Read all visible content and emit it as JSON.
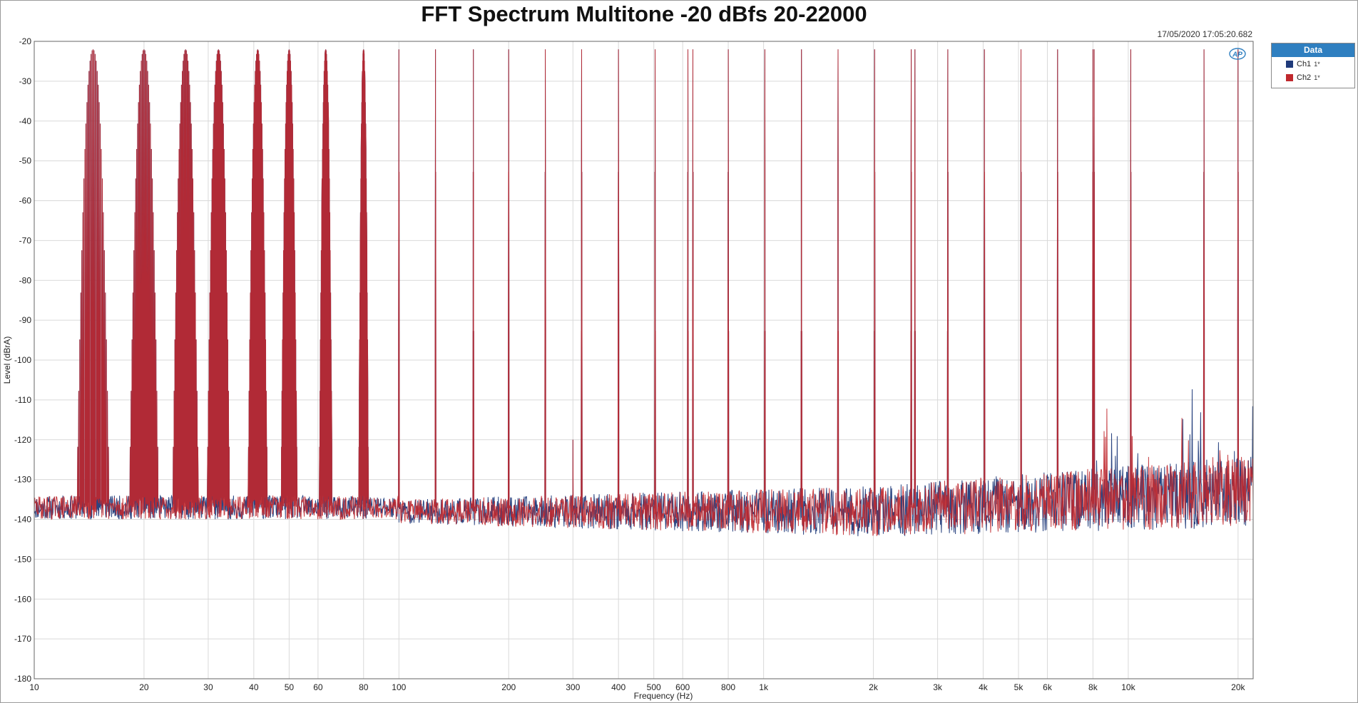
{
  "title": "FFT Spectrum Multitone -20 dBfs 20-22000",
  "timestamp": "17/05/2020 17:05:20.682",
  "legend": {
    "header": "Data",
    "items": [
      {
        "name": "Ch1",
        "sub": "1*",
        "color": "#1f3a7a"
      },
      {
        "name": "Ch2",
        "sub": "1*",
        "color": "#c0282d"
      }
    ]
  },
  "logo_icon": "ap-logo-icon",
  "chart_data": {
    "type": "line",
    "title": "FFT Spectrum Multitone -20 dBfs 20-22000",
    "xlabel": "Frequency (Hz)",
    "ylabel": "Level (dBrA)",
    "xscale": "log",
    "xlim": [
      10,
      22000
    ],
    "ylim": [
      -180,
      -20
    ],
    "grid": true,
    "legend_position": "right-outside-top",
    "x_ticks": [
      {
        "value": 10,
        "label": "10"
      },
      {
        "value": 20,
        "label": "20"
      },
      {
        "value": 30,
        "label": "30"
      },
      {
        "value": 40,
        "label": "40"
      },
      {
        "value": 50,
        "label": "50"
      },
      {
        "value": 60,
        "label": "60"
      },
      {
        "value": 80,
        "label": "80"
      },
      {
        "value": 100,
        "label": "100"
      },
      {
        "value": 200,
        "label": "200"
      },
      {
        "value": 300,
        "label": "300"
      },
      {
        "value": 400,
        "label": "400"
      },
      {
        "value": 500,
        "label": "500"
      },
      {
        "value": 600,
        "label": "600"
      },
      {
        "value": 800,
        "label": "800"
      },
      {
        "value": 1000,
        "label": "1k"
      },
      {
        "value": 2000,
        "label": "2k"
      },
      {
        "value": 3000,
        "label": "3k"
      },
      {
        "value": 4000,
        "label": "4k"
      },
      {
        "value": 5000,
        "label": "5k"
      },
      {
        "value": 6000,
        "label": "6k"
      },
      {
        "value": 8000,
        "label": "8k"
      },
      {
        "value": 10000,
        "label": "10k"
      },
      {
        "value": 20000,
        "label": "20k"
      }
    ],
    "y_ticks": [
      -20,
      -30,
      -40,
      -50,
      -60,
      -70,
      -80,
      -90,
      -100,
      -110,
      -120,
      -130,
      -140,
      -150,
      -160,
      -170,
      -180
    ],
    "tone_frequencies": [
      14.5,
      20,
      26,
      32,
      41,
      50,
      63,
      80,
      100,
      126,
      160,
      200,
      252,
      317,
      400,
      504,
      620,
      640,
      800,
      1008,
      1270,
      1600,
      2016,
      2540,
      2600,
      3200,
      4032,
      5080,
      6400,
      8000,
      8064,
      10160,
      16128,
      20000
    ],
    "tone_level": -22,
    "noise_floor": {
      "low_freq": -137,
      "mid_freq": -138,
      "high_freq": -133
    },
    "noise_spikes": [
      {
        "x": 160,
        "y": -123
      },
      {
        "x": 300,
        "y": -120
      }
    ],
    "series": [
      {
        "name": "Ch1",
        "color": "#1f3a7a"
      },
      {
        "name": "Ch2",
        "color": "#c0282d"
      }
    ]
  }
}
